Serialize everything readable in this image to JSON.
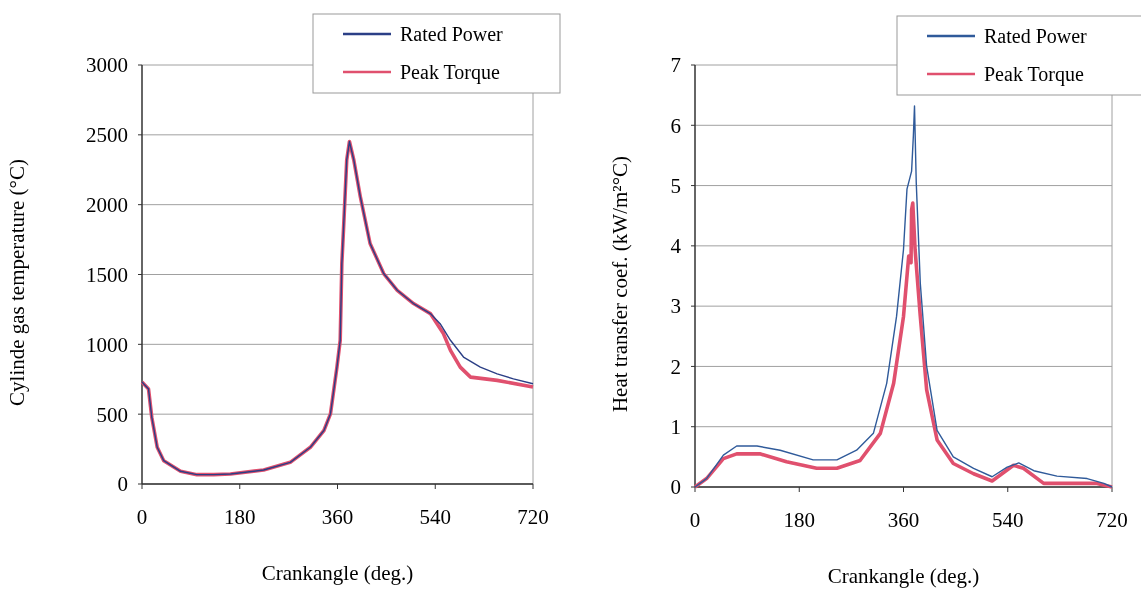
{
  "chart_data": [
    {
      "type": "line",
      "xlabel": "Crankangle (deg.)",
      "ylabel": "Cylinde gas temperature (°C)",
      "xlim": [
        0,
        720
      ],
      "xticks": [
        0,
        180,
        360,
        540,
        720
      ],
      "ylim": [
        0,
        3000
      ],
      "yticks": [
        0,
        500,
        1000,
        1500,
        2000,
        2500,
        3000
      ],
      "grid": "y",
      "legend": "top right",
      "marker": "none",
      "line_style": "solid",
      "series": [
        {
          "name": "Rated Power",
          "color": "#2b3f86",
          "x": [
            0,
            12,
            18,
            28,
            40,
            71,
            101,
            132,
            163,
            224,
            273,
            310,
            335,
            347,
            359,
            365,
            368,
            371,
            377,
            382,
            390,
            402,
            420,
            445,
            470,
            500,
            531,
            549,
            568,
            592,
            623,
            654,
            684,
            720
          ],
          "values": [
            730,
            680,
            478,
            263,
            167,
            91,
            67,
            67,
            72,
            100,
            155,
            263,
            383,
            502,
            837,
            1029,
            1579,
            1818,
            2320,
            2452,
            2320,
            2057,
            1722,
            1507,
            1387,
            1292,
            1220,
            1148,
            1029,
            909,
            837,
            789,
            753,
            718
          ]
        },
        {
          "name": "Peak Torque",
          "color": "#e0506e",
          "x": [
            0,
            12,
            18,
            28,
            40,
            71,
            101,
            132,
            163,
            224,
            273,
            310,
            335,
            347,
            359,
            365,
            368,
            371,
            377,
            382,
            390,
            402,
            420,
            445,
            470,
            500,
            531,
            555,
            568,
            586,
            605,
            654,
            720
          ],
          "values": [
            730,
            680,
            478,
            263,
            167,
            91,
            67,
            67,
            72,
            100,
            155,
            263,
            383,
            502,
            837,
            1029,
            1579,
            1818,
            2320,
            2452,
            2320,
            2057,
            1722,
            1507,
            1387,
            1292,
            1220,
            1077,
            957,
            837,
            765,
            742,
            694
          ]
        }
      ]
    },
    {
      "type": "line",
      "xlabel": "Crankangle (deg.)",
      "ylabel": "Heat transfer coef. (kW/m²°C)",
      "xlim": [
        0,
        720
      ],
      "xticks": [
        0,
        180,
        360,
        540,
        720
      ],
      "ylim": [
        0,
        7
      ],
      "yticks": [
        0,
        1,
        2,
        3,
        4,
        5,
        6,
        7
      ],
      "grid": "y",
      "legend": "top right",
      "marker": "none",
      "line_style": "solid",
      "series": [
        {
          "name": "Rated Power",
          "color": "#2f5a9a",
          "x": [
            0,
            20,
            49,
            72,
            107,
            147,
            204,
            245,
            279,
            308,
            331,
            348,
            360,
            366,
            374,
            377,
            379,
            382,
            389,
            400,
            418,
            446,
            481,
            513,
            539,
            559,
            585,
            625,
            677,
            706,
            720
          ],
          "values": [
            0,
            0.14,
            0.53,
            0.68,
            0.68,
            0.61,
            0.45,
            0.45,
            0.61,
            0.89,
            1.72,
            2.83,
            3.94,
            4.94,
            5.24,
            5.82,
            6.32,
            5.05,
            3.38,
            2.0,
            0.94,
            0.5,
            0.31,
            0.17,
            0.33,
            0.4,
            0.27,
            0.18,
            0.14,
            0.06,
            0
          ]
        },
        {
          "name": "Peak Torque",
          "color": "#e0506e",
          "x": [
            0,
            20,
            49,
            72,
            112,
            158,
            210,
            245,
            285,
            320,
            343,
            360,
            369,
            373,
            374,
            376,
            380,
            389,
            400,
            418,
            446,
            481,
            513,
            550,
            567,
            602,
            694,
            720
          ],
          "values": [
            0,
            0.14,
            0.47,
            0.55,
            0.55,
            0.42,
            0.31,
            0.31,
            0.44,
            0.89,
            1.72,
            2.83,
            3.83,
            3.72,
            4.6,
            4.71,
            3.94,
            2.83,
            1.61,
            0.78,
            0.39,
            0.22,
            0.1,
            0.36,
            0.31,
            0.06,
            0.06,
            0
          ]
        }
      ]
    }
  ]
}
